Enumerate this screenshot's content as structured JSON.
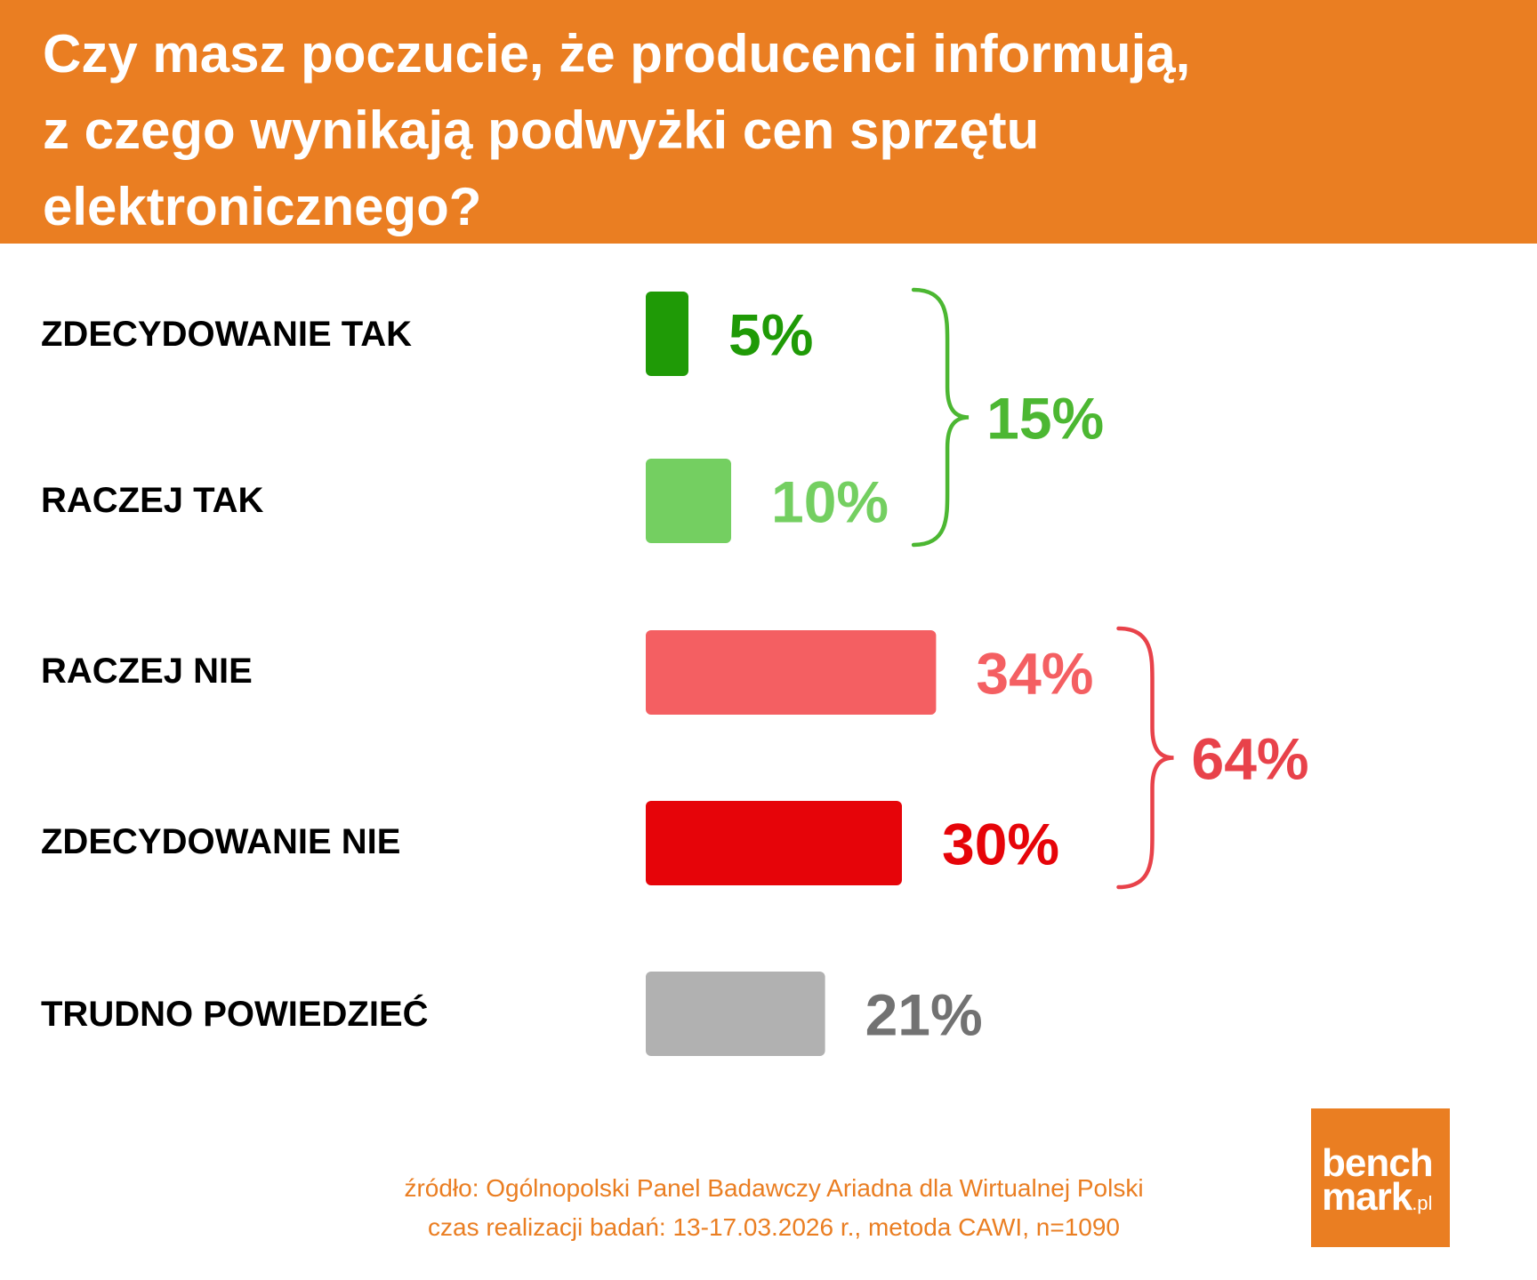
{
  "title": {
    "lines": [
      "Czy masz poczucie, że producenci informują,",
      "z czego wynikają podwyżki cen sprzętu",
      "elektronicznego?"
    ]
  },
  "chart_data": {
    "type": "bar",
    "orientation": "horizontal",
    "title": "Czy masz poczucie, że producenci informują, z czego wynikają podwyżki cen sprzętu elektronicznego?",
    "categories": [
      "ZDECYDOWANIE TAK",
      "RACZEJ TAK",
      "RACZEJ NIE",
      "ZDECYDOWANIE NIE",
      "TRUDNO POWIEDZIEĆ"
    ],
    "values": [
      5,
      10,
      34,
      30,
      21
    ],
    "value_labels": [
      "5%",
      "10%",
      "34%",
      "30%",
      "21%"
    ],
    "colors": [
      "#1f9a06",
      "#74cf61",
      "#f45f62",
      "#e60409",
      "#b1b1b1"
    ],
    "label_colors": [
      "#1f9a06",
      "#74cf61",
      "#f45f62",
      "#e60409",
      "#727272"
    ],
    "groups": [
      {
        "members": [
          0,
          1
        ],
        "total": 15,
        "label": "15%",
        "color": "#4cb732"
      },
      {
        "members": [
          2,
          3
        ],
        "total": 64,
        "label": "64%",
        "color": "#e8424a"
      }
    ],
    "unit": "%",
    "grid": false,
    "legend": "none"
  },
  "footer": {
    "source": "źródło: Ogólnopolski Panel Badawczy Ariadna dla Wirtualnej Polski",
    "details": "czas realizacji badań: 13-17.03.2026 r., metoda CAWI, n=1090"
  },
  "logo": {
    "line1": "bench",
    "line2": "mark",
    "suffix": ".pl",
    "color": "#ea7e22"
  }
}
